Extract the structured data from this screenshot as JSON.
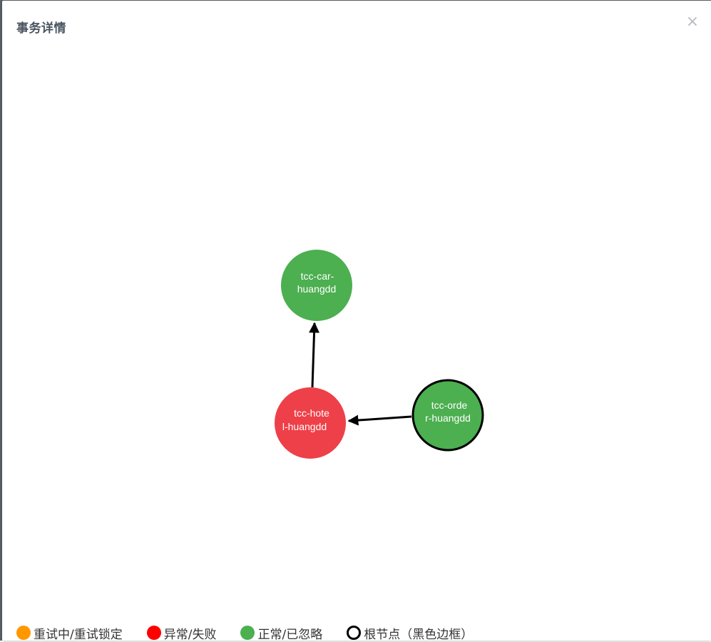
{
  "modal": {
    "title": "事务详情",
    "close_symbol": "×"
  },
  "graph": {
    "nodes": [
      {
        "id": "car",
        "label_lines": [
          "tcc-car-",
          "huangdd"
        ],
        "status": "normal",
        "root": false
      },
      {
        "id": "hotel",
        "label_lines": [
          "tcc-hote",
          "l-huangdd"
        ],
        "status": "failed",
        "root": false
      },
      {
        "id": "order",
        "label_lines": [
          "tcc-orde",
          "r-huangdd"
        ],
        "status": "normal",
        "root": true
      }
    ],
    "edges": [
      {
        "from": "hotel",
        "to": "car"
      },
      {
        "from": "order",
        "to": "hotel"
      }
    ]
  },
  "legend": {
    "items": [
      {
        "label": "重试中/重试锁定",
        "color": "#ff9800",
        "style": "filled"
      },
      {
        "label": "异常/失败",
        "color": "#ff0000",
        "style": "filled"
      },
      {
        "label": "正常/已忽略",
        "color": "#4caf50",
        "style": "filled"
      },
      {
        "label": "根节点（黑色边框）",
        "color": "#000000",
        "style": "outline"
      }
    ]
  },
  "colors": {
    "normal": "#4caf50",
    "failed": "#ee4049",
    "retrying": "#ff9800",
    "root_border": "#000000",
    "edge": "#000000"
  }
}
